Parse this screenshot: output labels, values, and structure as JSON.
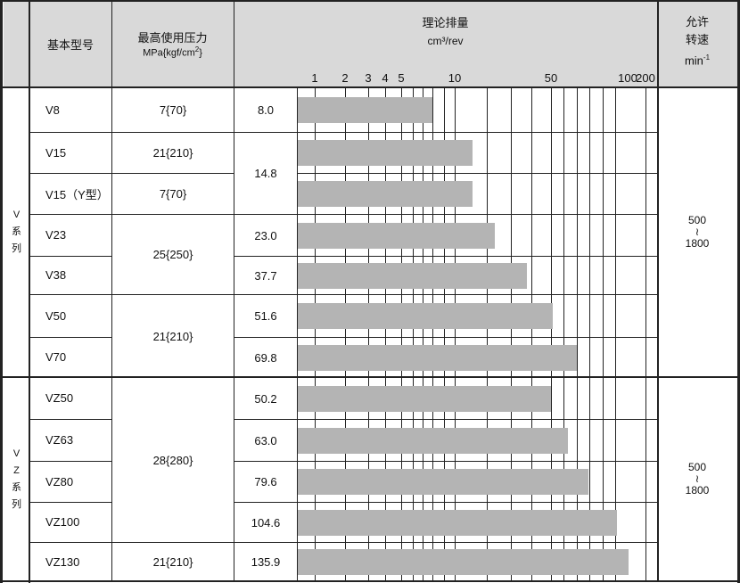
{
  "header": {
    "model": "基本型号",
    "pressure_title": "最高使用压力",
    "pressure_unit": "MPa{kgf/cm",
    "pressure_unit_sup": "2",
    "pressure_unit_end": "}",
    "displacement_title": "理论排量",
    "displacement_unit": "cm³/rev",
    "speed_title_1": "允许",
    "speed_title_2": "转速",
    "speed_unit": "min",
    "speed_unit_sup": "-1"
  },
  "series": [
    {
      "label_lines": [
        "V",
        "系",
        "列"
      ],
      "rows": 7,
      "speed": [
        "500",
        "≀",
        "1800"
      ]
    },
    {
      "label_lines": [
        "V",
        "Z",
        "系",
        "列"
      ],
      "rows": 5,
      "speed": [
        "500",
        "≀",
        "1800"
      ]
    }
  ],
  "models": [
    "V8",
    "V15",
    "V15（Y型）",
    "V23",
    "V38",
    "V50",
    "V70",
    "VZ50",
    "VZ63",
    "VZ80",
    "VZ100",
    "VZ130"
  ],
  "pressure_groups": [
    {
      "label": "7{70}",
      "rows": 1
    },
    {
      "label": "21{210}",
      "rows": 1
    },
    {
      "label": "7{70}",
      "rows": 1
    },
    {
      "label": "25{250}",
      "rows": 2
    },
    {
      "label": "21{210}",
      "rows": 2
    },
    {
      "label": "28{280}",
      "rows": 4
    },
    {
      "label": "21{210}",
      "rows": 1
    }
  ],
  "displacement_groups": [
    {
      "label": "8.0",
      "rows": 1
    },
    {
      "label": "14.8",
      "rows": 2
    },
    {
      "label": "23.0",
      "rows": 1
    },
    {
      "label": "37.7",
      "rows": 1
    },
    {
      "label": "51.6",
      "rows": 1
    },
    {
      "label": "69.8",
      "rows": 1
    },
    {
      "label": "50.2",
      "rows": 1
    },
    {
      "label": "63.0",
      "rows": 1
    },
    {
      "label": "79.6",
      "rows": 1
    },
    {
      "label": "104.6",
      "rows": 1
    },
    {
      "label": "135.9",
      "rows": 1
    }
  ],
  "chart_data": {
    "type": "bar",
    "orientation": "horizontal",
    "scale": "log",
    "xlabel": "理论排量 cm³/rev",
    "categories": [
      "V8",
      "V15",
      "V15（Y型）",
      "V23",
      "V38",
      "V50",
      "V70",
      "VZ50",
      "VZ63",
      "VZ80",
      "VZ100",
      "VZ130"
    ],
    "values": [
      8.0,
      14.8,
      14.8,
      23.0,
      37.7,
      51.6,
      69.8,
      50.2,
      63.0,
      79.6,
      104.6,
      135.9
    ],
    "tick_labels": [
      "1",
      "2",
      "3",
      "4",
      "5",
      "10",
      "50",
      "100",
      "200"
    ],
    "gridlines": [
      1,
      2,
      3,
      4,
      5,
      6,
      7,
      8,
      9,
      10,
      20,
      30,
      40,
      50,
      60,
      70,
      80,
      90,
      100,
      200
    ],
    "xlim": [
      1,
      200
    ],
    "grid": true,
    "bar_color": "#b4b4b4",
    "header_color": "#d9d9d9"
  }
}
